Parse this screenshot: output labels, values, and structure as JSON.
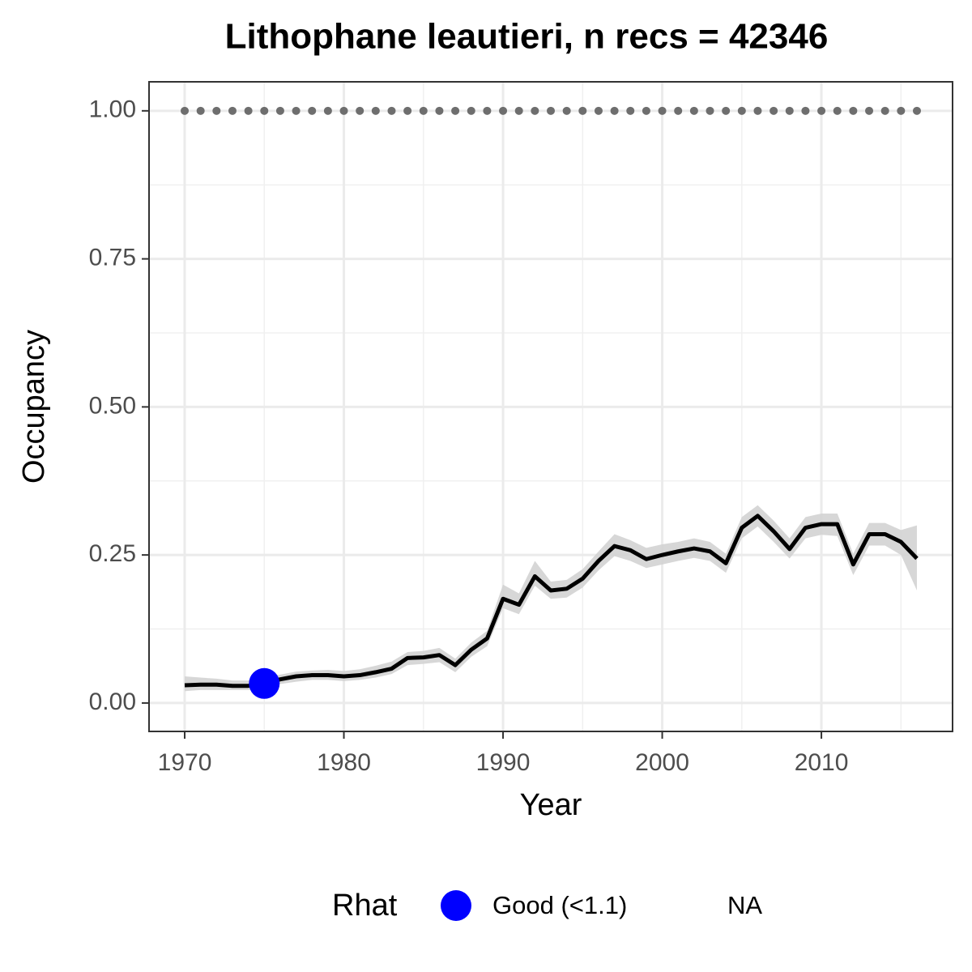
{
  "chart_data": {
    "type": "line",
    "title": "Lithophane leautieri, n recs = 42346",
    "x_label": "Year",
    "y_label": "Occupancy",
    "x": [
      1970,
      1971,
      1972,
      1973,
      1974,
      1975,
      1976,
      1977,
      1978,
      1979,
      1980,
      1981,
      1982,
      1983,
      1984,
      1985,
      1986,
      1987,
      1988,
      1989,
      1990,
      1991,
      1992,
      1993,
      1994,
      1995,
      1996,
      1997,
      1998,
      1999,
      2000,
      2001,
      2002,
      2003,
      2004,
      2005,
      2006,
      2007,
      2008,
      2009,
      2010,
      2011,
      2012,
      2013,
      2014,
      2015,
      2016
    ],
    "line": {
      "color": "#000000",
      "values": [
        0.03,
        0.031,
        0.031,
        0.029,
        0.029,
        0.033,
        0.04,
        0.045,
        0.047,
        0.047,
        0.045,
        0.047,
        0.052,
        0.058,
        0.076,
        0.077,
        0.081,
        0.064,
        0.09,
        0.109,
        0.176,
        0.166,
        0.214,
        0.19,
        0.193,
        0.21,
        0.24,
        0.265,
        0.258,
        0.243,
        0.25,
        0.256,
        0.261,
        0.256,
        0.236,
        0.296,
        0.316,
        0.29,
        0.26,
        0.296,
        0.302,
        0.302,
        0.234,
        0.285,
        0.285,
        0.272,
        0.244
      ]
    },
    "ribbon": {
      "color": "#d3d3d3",
      "lower": [
        0.02,
        0.022,
        0.022,
        0.022,
        0.022,
        0.025,
        0.032,
        0.036,
        0.039,
        0.039,
        0.037,
        0.039,
        0.043,
        0.049,
        0.064,
        0.066,
        0.069,
        0.052,
        0.078,
        0.096,
        0.16,
        0.15,
        0.198,
        0.176,
        0.178,
        0.195,
        0.224,
        0.248,
        0.24,
        0.228,
        0.234,
        0.24,
        0.245,
        0.24,
        0.22,
        0.278,
        0.298,
        0.272,
        0.244,
        0.278,
        0.284,
        0.282,
        0.216,
        0.266,
        0.266,
        0.25,
        0.19
      ],
      "upper": [
        0.045,
        0.043,
        0.041,
        0.038,
        0.038,
        0.042,
        0.048,
        0.053,
        0.055,
        0.056,
        0.054,
        0.057,
        0.063,
        0.07,
        0.086,
        0.088,
        0.093,
        0.075,
        0.102,
        0.122,
        0.2,
        0.185,
        0.24,
        0.205,
        0.208,
        0.226,
        0.256,
        0.285,
        0.275,
        0.262,
        0.268,
        0.272,
        0.278,
        0.272,
        0.252,
        0.314,
        0.334,
        0.308,
        0.278,
        0.314,
        0.32,
        0.32,
        0.252,
        0.304,
        0.304,
        0.292,
        0.3
      ]
    },
    "reference": {
      "color": "#6e6e6e",
      "values": [
        1,
        1,
        1,
        1,
        1,
        1,
        1,
        1,
        1,
        1,
        1,
        1,
        1,
        1,
        1,
        1,
        1,
        1,
        1,
        1,
        1,
        1,
        1,
        1,
        1,
        1,
        1,
        1,
        1,
        1,
        1,
        1,
        1,
        1,
        1,
        1,
        1,
        1,
        1,
        1,
        1,
        1,
        1,
        1,
        1,
        1,
        1
      ]
    },
    "points": [
      {
        "x": 1975,
        "y": 0.033,
        "color": "#0000ff"
      }
    ],
    "legend": {
      "title": "Rhat",
      "position": "bottom",
      "entries": [
        {
          "label": "Good (<1.1)",
          "color": "#0000ff"
        },
        {
          "label": "NA"
        }
      ]
    },
    "xlim": [
      1967.76,
      2018.24
    ],
    "ylim": [
      -0.048,
      1.049
    ],
    "xticks": [
      1970,
      1980,
      1990,
      2000,
      2010
    ],
    "minor_xticks": [
      1975,
      1985,
      1995,
      2005,
      2015
    ],
    "yticks": [
      {
        "value": 0,
        "label": "0.00"
      },
      {
        "value": 0.25,
        "label": "0.25"
      },
      {
        "value": 0.5,
        "label": "0.50"
      },
      {
        "value": 0.75,
        "label": "0.75"
      },
      {
        "value": 1,
        "label": "1.00"
      }
    ],
    "minor_yticks": [
      0.125,
      0.375,
      0.625,
      0.875
    ],
    "grid": true
  }
}
